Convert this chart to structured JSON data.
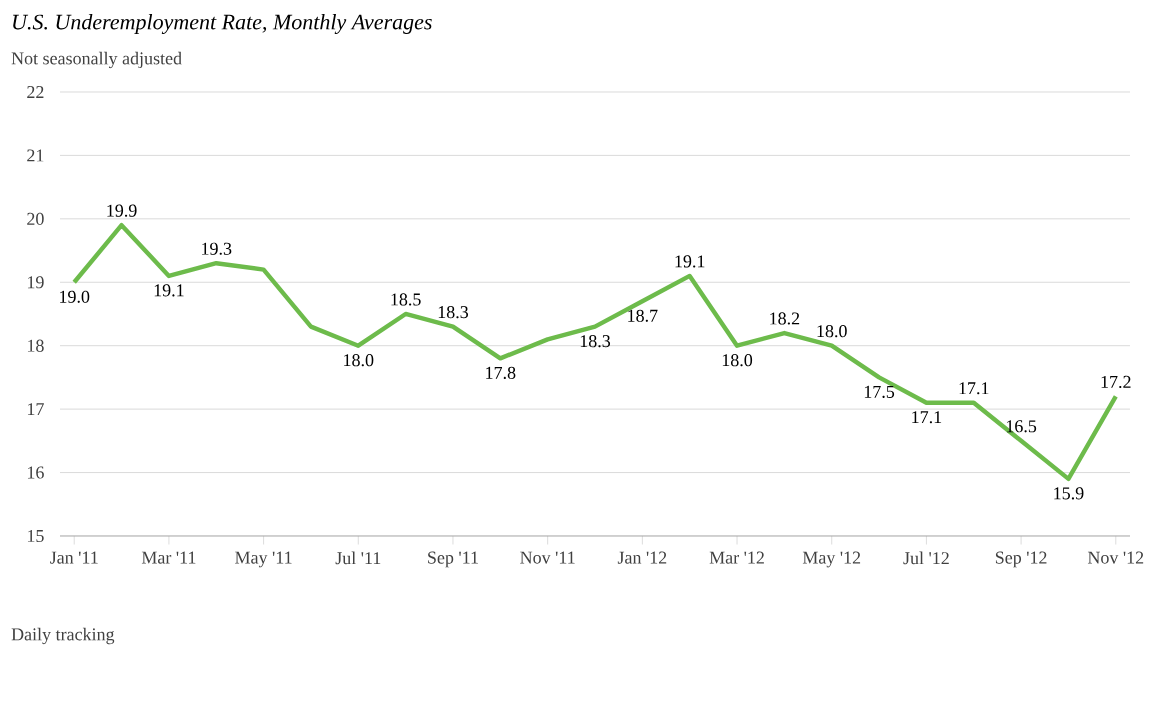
{
  "chart_data": {
    "type": "line",
    "title": "U.S. Underemployment Rate, Monthly Averages",
    "subtitle": "Not seasonally adjusted",
    "categories": [
      "Jan '11",
      null,
      "Mar '11",
      null,
      "May '11",
      null,
      "Jul '11",
      null,
      "Sep '11",
      null,
      "Nov '11",
      null,
      "Jan '12",
      null,
      "Mar '12",
      null,
      "May '12",
      null,
      "Jul '12",
      null,
      "Sep '12",
      null,
      "Nov '12"
    ],
    "values": [
      19.0,
      19.9,
      19.1,
      19.3,
      19.2,
      18.3,
      18.0,
      18.5,
      18.3,
      17.8,
      18.1,
      18.3,
      18.7,
      19.1,
      18.0,
      18.2,
      18.0,
      17.5,
      17.1,
      17.1,
      16.5,
      15.9,
      17.2
    ],
    "value_labels": [
      "19.0",
      "19.9",
      "19.1",
      "19.3",
      null,
      null,
      "18.0",
      "18.5",
      "18.3",
      "17.8",
      null,
      "18.3",
      "18.7",
      "19.1",
      "18.0",
      "18.2",
      "18.0",
      "17.5",
      "17.1",
      "17.1",
      "16.5",
      "15.9",
      "17.2"
    ],
    "color": "#6dbb4b",
    "ylim": [
      15,
      22
    ],
    "yticks": [
      15,
      16,
      17,
      18,
      19,
      20,
      21,
      22
    ],
    "grid": "y",
    "marker": "none",
    "line_style": "solid",
    "annotations": [
      "Daily tracking"
    ]
  }
}
